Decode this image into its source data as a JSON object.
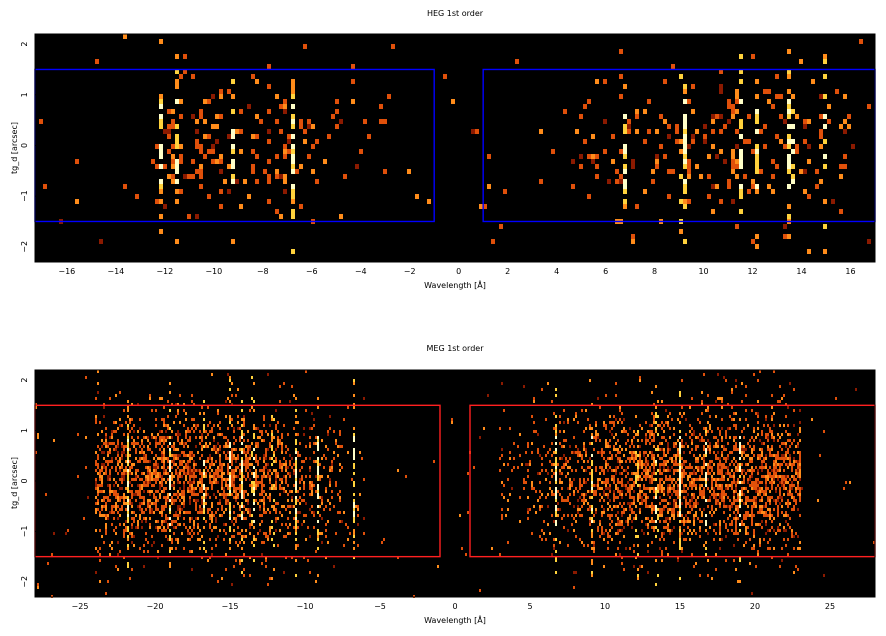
{
  "chart_data": [
    {
      "type": "heatmap",
      "title": "HEG 1st order",
      "xlabel": "Wavelength [Å]",
      "ylabel": "tg_d [arcsec]",
      "xlim": [
        -17.3,
        17.0
      ],
      "ylim": [
        -2.3,
        2.2
      ],
      "xticks": [
        -16,
        -14,
        -12,
        -10,
        -8,
        -6,
        -4,
        -2,
        0,
        2,
        4,
        6,
        8,
        10,
        12,
        14,
        16
      ],
      "yticks": [
        -2,
        -1,
        0,
        1,
        2
      ],
      "background": "#000000",
      "colormap": [
        "#000000",
        "#8b1a00",
        "#e0500a",
        "#ff8c1a",
        "#ffd23c",
        "#ffffc8"
      ],
      "box_color": "#0000ff",
      "extraction_regions": [
        {
          "side": "minus",
          "x_range": [
            -17.3,
            -1.0
          ],
          "y_range": [
            -1.5,
            1.5
          ]
        },
        {
          "side": "plus",
          "x_range": [
            1.0,
            17.0
          ],
          "y_range": [
            -1.5,
            1.5
          ]
        }
      ],
      "source_extent": {
        "minus": [
          -12.4,
          -3.0
        ],
        "plus": [
          2.5,
          16.0
        ],
        "y_halfwidth": 1.5
      },
      "emission_lines": [
        -12.13,
        -11.55,
        -9.25,
        -9.17,
        -6.74,
        6.74,
        9.17,
        9.25,
        11.55,
        12.13,
        13.45,
        13.7,
        15.01
      ]
    },
    {
      "type": "heatmap",
      "title": "MEG 1st order",
      "xlabel": "Wavelength [Å]",
      "ylabel": "tg_d [arcsec]",
      "xlim": [
        -28.0,
        28.0
      ],
      "ylim": [
        -2.3,
        2.2
      ],
      "xticks": [
        -25,
        -20,
        -15,
        -10,
        -5,
        0,
        5,
        10,
        15,
        20,
        25
      ],
      "yticks": [
        -2,
        -1,
        0,
        1,
        2
      ],
      "background": "#000000",
      "colormap": [
        "#000000",
        "#8b1a00",
        "#e0500a",
        "#ff8c1a",
        "#ffd23c",
        "#ffffc8"
      ],
      "box_color": "#ff2020",
      "extraction_regions": [
        {
          "side": "minus",
          "x_range": [
            -28.0,
            -1.0
          ],
          "y_range": [
            -1.5,
            1.5
          ]
        },
        {
          "side": "plus",
          "x_range": [
            1.0,
            28.0
          ],
          "y_range": [
            -1.5,
            1.5
          ]
        }
      ],
      "source_extent": {
        "minus": [
          -24.0,
          -6.0
        ],
        "plus": [
          3.0,
          23.0
        ],
        "y_halfwidth": 1.5
      },
      "emission_lines": [
        -21.8,
        -18.97,
        -16.78,
        -15.01,
        -14.2,
        -13.45,
        -12.13,
        -10.6,
        -9.17,
        -6.74,
        6.74,
        9.17,
        12.13,
        13.45,
        15.01,
        16.78,
        18.97
      ]
    }
  ]
}
